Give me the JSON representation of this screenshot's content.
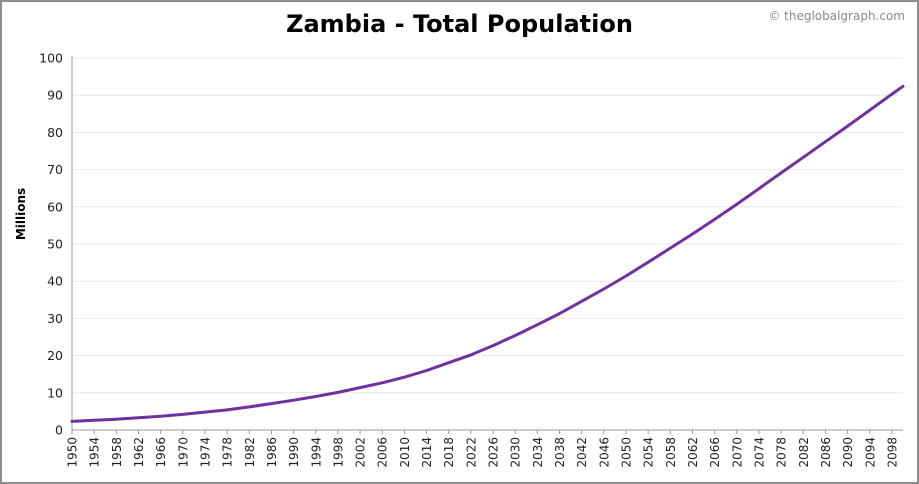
{
  "header": {
    "title": "Zambia - Total Population",
    "credit": "© theglobalgraph.com"
  },
  "colors": {
    "line": "#7030a0",
    "grid": "#e9e9e9",
    "axis": "#9a9a9a",
    "frame": "#8c8c8c"
  },
  "chart_data": {
    "type": "line",
    "title": "Zambia - Total Population",
    "xlabel": "",
    "ylabel": "Millions",
    "ylim": [
      0,
      100
    ],
    "xlim": [
      1950,
      2100
    ],
    "yticks": [
      "0",
      "10",
      "20",
      "30",
      "40",
      "50",
      "60",
      "70",
      "80",
      "90",
      "100"
    ],
    "xticks": [
      "1950",
      "1954",
      "1958",
      "1962",
      "1966",
      "1970",
      "1974",
      "1978",
      "1982",
      "1986",
      "1990",
      "1994",
      "1998",
      "2002",
      "2006",
      "2010",
      "2014",
      "2018",
      "2022",
      "2026",
      "2030",
      "2034",
      "2038",
      "2042",
      "2046",
      "2050",
      "2054",
      "2058",
      "2062",
      "2066",
      "2070",
      "2074",
      "2078",
      "2082",
      "2086",
      "2090",
      "2094",
      "2098"
    ],
    "grid": true,
    "legend": "none",
    "series": [
      {
        "x": [
          1950,
          1954,
          1958,
          1962,
          1966,
          1970,
          1974,
          1978,
          1982,
          1986,
          1990,
          1994,
          1998,
          2002,
          2006,
          2010,
          2014,
          2018,
          2022,
          2026,
          2030,
          2034,
          2038,
          2042,
          2046,
          2050,
          2054,
          2058,
          2062,
          2066,
          2070,
          2074,
          2078,
          2082,
          2086,
          2090,
          2094,
          2098,
          2100
        ],
        "values": [
          2.3,
          2.6,
          2.9,
          3.3,
          3.7,
          4.2,
          4.8,
          5.4,
          6.2,
          7.1,
          8.0,
          9.0,
          10.1,
          11.4,
          12.7,
          14.2,
          16.0,
          18.1,
          20.2,
          22.7,
          25.4,
          28.3,
          31.3,
          34.6,
          37.9,
          41.4,
          45.1,
          48.9,
          52.7,
          56.6,
          60.7,
          64.9,
          69.1,
          73.3,
          77.5,
          81.7,
          86.0,
          90.3,
          92.4
        ]
      }
    ]
  }
}
